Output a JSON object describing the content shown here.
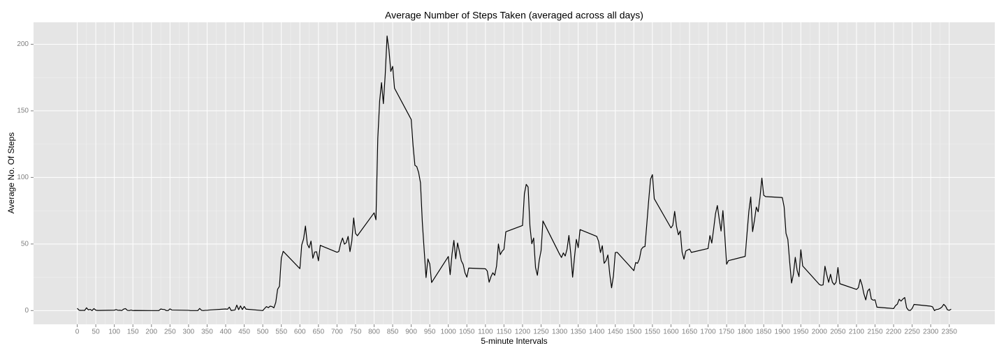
{
  "chart_data": {
    "type": "line",
    "title": "Average Number of Steps Taken (averaged across all days)",
    "x_label": "5-minute Intervals",
    "y_label": "Average No. Of Steps",
    "color": "#000000",
    "grid": true,
    "xlim": [
      -117.75,
      2472.75
    ],
    "ylim": [
      -10.31,
      216.48
    ],
    "xticks": [
      0,
      50,
      100,
      150,
      200,
      250,
      300,
      350,
      400,
      450,
      500,
      550,
      600,
      650,
      700,
      750,
      800,
      850,
      900,
      950,
      1000,
      1050,
      1100,
      1150,
      1200,
      1250,
      1300,
      1350,
      1400,
      1450,
      1500,
      1550,
      1600,
      1650,
      1700,
      1750,
      1800,
      1850,
      1900,
      1950,
      2000,
      2050,
      2100,
      2150,
      2200,
      2250,
      2300,
      2350
    ],
    "yticks": [
      0,
      50,
      100,
      150,
      200
    ],
    "x": [
      0,
      5,
      10,
      15,
      20,
      25,
      30,
      35,
      40,
      45,
      50,
      55,
      100,
      105,
      110,
      115,
      120,
      125,
      130,
      135,
      140,
      145,
      150,
      155,
      200,
      205,
      210,
      215,
      220,
      225,
      230,
      235,
      240,
      245,
      250,
      255,
      300,
      305,
      310,
      315,
      320,
      325,
      330,
      335,
      340,
      345,
      350,
      355,
      400,
      405,
      410,
      415,
      420,
      425,
      430,
      435,
      440,
      445,
      450,
      455,
      500,
      505,
      510,
      515,
      520,
      525,
      530,
      535,
      540,
      545,
      550,
      555,
      600,
      605,
      610,
      615,
      620,
      625,
      630,
      635,
      640,
      645,
      650,
      655,
      700,
      705,
      710,
      715,
      720,
      725,
      730,
      735,
      740,
      745,
      750,
      755,
      800,
      805,
      810,
      815,
      820,
      825,
      830,
      835,
      840,
      845,
      850,
      855,
      900,
      905,
      910,
      915,
      920,
      925,
      930,
      935,
      940,
      945,
      950,
      955,
      1000,
      1005,
      1010,
      1015,
      1020,
      1025,
      1030,
      1035,
      1040,
      1045,
      1050,
      1055,
      1100,
      1105,
      1110,
      1115,
      1120,
      1125,
      1130,
      1135,
      1140,
      1145,
      1150,
      1155,
      1200,
      1205,
      1210,
      1215,
      1220,
      1225,
      1230,
      1235,
      1240,
      1245,
      1250,
      1255,
      1300,
      1305,
      1310,
      1315,
      1320,
      1325,
      1330,
      1335,
      1340,
      1345,
      1350,
      1355,
      1400,
      1405,
      1410,
      1415,
      1420,
      1425,
      1430,
      1435,
      1440,
      1445,
      1450,
      1455,
      1500,
      1505,
      1510,
      1515,
      1520,
      1525,
      1530,
      1535,
      1540,
      1545,
      1550,
      1555,
      1600,
      1605,
      1610,
      1615,
      1620,
      1625,
      1630,
      1635,
      1640,
      1645,
      1650,
      1655,
      1700,
      1705,
      1710,
      1715,
      1720,
      1725,
      1730,
      1735,
      1740,
      1745,
      1750,
      1755,
      1800,
      1805,
      1810,
      1815,
      1820,
      1825,
      1830,
      1835,
      1840,
      1845,
      1850,
      1855,
      1900,
      1905,
      1910,
      1915,
      1920,
      1925,
      1930,
      1935,
      1940,
      1945,
      1950,
      1955,
      2000,
      2005,
      2010,
      2015,
      2020,
      2025,
      2030,
      2035,
      2040,
      2045,
      2050,
      2055,
      2100,
      2105,
      2110,
      2115,
      2120,
      2125,
      2130,
      2135,
      2140,
      2145,
      2150,
      2155,
      2200,
      2205,
      2210,
      2215,
      2220,
      2225,
      2230,
      2235,
      2240,
      2245,
      2250,
      2255,
      2300,
      2305,
      2310,
      2315,
      2320,
      2325,
      2330,
      2335,
      2340,
      2345,
      2350,
      2355
    ],
    "values": [
      1.7,
      0.3,
      0.1,
      0.2,
      0.1,
      2.1,
      0.5,
      0.9,
      0,
      1.5,
      0.3,
      0.1,
      0.3,
      0.7,
      0.2,
      0.3,
      0,
      1.1,
      1.5,
      0.2,
      0,
      0.4,
      0,
      0.1,
      0,
      0,
      0,
      0,
      0,
      1.2,
      0.9,
      0.8,
      0,
      0,
      1.3,
      0.4,
      0.2,
      0,
      0,
      0,
      0,
      0,
      1.6,
      0.2,
      0,
      0.2,
      0.2,
      0.4,
      1.2,
      1,
      2.6,
      0,
      0.3,
      0.4,
      4.1,
      0.7,
      3.5,
      0.8,
      3.1,
      1.1,
      0,
      1.6,
      3,
      2.2,
      3.3,
      3,
      2.1,
      6.1,
      16,
      18.3,
      39.5,
      44.5,
      31.5,
      49.3,
      53.8,
      63.5,
      50,
      47.1,
      52.2,
      39.3,
      44,
      44.2,
      37.4,
      49,
      43.8,
      44.4,
      50.5,
      54.5,
      49.9,
      51,
      55.7,
      44.3,
      52.3,
      69.6,
      57.9,
      56.2,
      73.4,
      68.2,
      129.4,
      157.5,
      171.2,
      155.4,
      177.3,
      206.2,
      195.9,
      179.6,
      183.4,
      167,
      143.5,
      124,
      109.1,
      108.1,
      103.7,
      96,
      66.2,
      45.2,
      24.8,
      38.8,
      35,
      21.1,
      40.6,
      27,
      42.4,
      52.7,
      38.9,
      50.8,
      44.3,
      37.4,
      34.7,
      28.3,
      25.1,
      31.9,
      31.4,
      29.7,
      21.3,
      25.5,
      28.4,
      26.5,
      33.4,
      50,
      42,
      44.6,
      46,
      59.2,
      63.9,
      87.7,
      94.8,
      92.8,
      63.4,
      50.2,
      54.5,
      32.4,
      26.5,
      37.7,
      45.1,
      67.3,
      42.3,
      39.9,
      43.3,
      41,
      46.2,
      56.4,
      42.7,
      25.1,
      40,
      53.5,
      47.3,
      60.8,
      55.7,
      52,
      43.6,
      48.7,
      35.5,
      37.5,
      41.8,
      27.5,
      17.1,
      26.1,
      43.6,
      43.8,
      30,
      36.1,
      35.5,
      38.8,
      46,
      47.7,
      48.1,
      65.3,
      82.9,
      98.7,
      102.1,
      84,
      62.1,
      64.1,
      74.5,
      63.2,
      56.9,
      59.8,
      43.9,
      38.6,
      44.7,
      45.5,
      46.2,
      43.7,
      46.6,
      56.3,
      50.7,
      61.2,
      72.7,
      78.9,
      68.9,
      59.7,
      75.1,
      56.5,
      34.8,
      37.5,
      40.7,
      58,
      74.7,
      85.3,
      59.3,
      67.8,
      77.7,
      74.2,
      85.3,
      99.5,
      86.6,
      85.6,
      84.9,
      77.8,
      58,
      53.4,
      36.3,
      20.7,
      27.4,
      40,
      30.2,
      25.5,
      45.7,
      33.5,
      19.6,
      19,
      19.3,
      33.3,
      26.8,
      21.2,
      27.3,
      21.3,
      19.5,
      21.3,
      32.3,
      20.2,
      15.9,
      17.2,
      23.5,
      19.2,
      12.5,
      8,
      14.7,
      16.3,
      8.7,
      7.8,
      8.1,
      2.6,
      1.5,
      3.7,
      4.8,
      8.5,
      7.1,
      8.7,
      9.8,
      2.2,
      0.3,
      0.1,
      1.6,
      4.6,
      3.3,
      2.8,
      0,
      0.8,
      1,
      1.6,
      2.6,
      4.7,
      3.3,
      0.6,
      0.2,
      1.1
    ]
  }
}
